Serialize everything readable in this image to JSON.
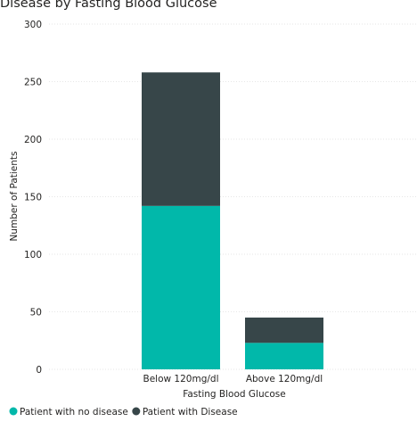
{
  "chart_data": {
    "type": "bar",
    "stacked": true,
    "title": "Disease by Fasting Blood Glucose",
    "xlabel": "Fasting Blood Glucose",
    "ylabel": "Number of Patients",
    "categories": [
      "Below 120mg/dl",
      "Above 120mg/dl"
    ],
    "series": [
      {
        "name": "Patient with no disease",
        "values": [
          142,
          23
        ],
        "color": "#01B8AA"
      },
      {
        "name": "Patient with Disease",
        "values": [
          116,
          22
        ],
        "color": "#374649"
      }
    ],
    "ylim": [
      0,
      300
    ],
    "yticks": [
      0,
      50,
      100,
      150,
      200,
      250,
      300
    ],
    "grid": true,
    "legend_position": "bottom-left"
  }
}
